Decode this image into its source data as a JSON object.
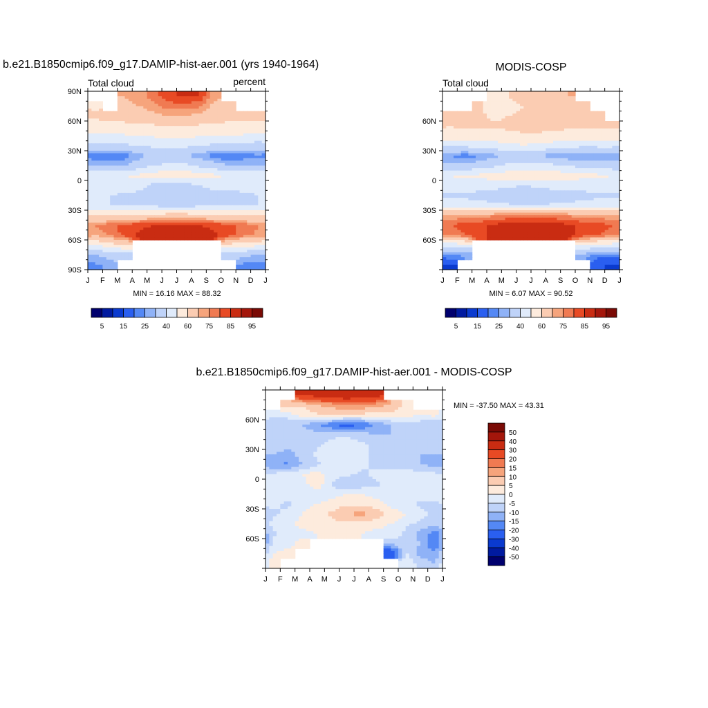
{
  "colors": {
    "abs_levels": [
      "#00006e",
      "#001aa0",
      "#0a3acf",
      "#2a5ff0",
      "#5488f5",
      "#8fb2f7",
      "#bfd3f9",
      "#e0ebfb",
      "#fdebdd",
      "#fbccb2",
      "#f6a47c",
      "#f07a52",
      "#e84a24",
      "#c92c12",
      "#a4160b",
      "#7a0a05"
    ],
    "diff_levels": [
      "#00006e",
      "#001aa0",
      "#0a3acf",
      "#2a5ff0",
      "#5488f5",
      "#8fb2f7",
      "#bfd3f9",
      "#e0ebfb",
      "#fdebdd",
      "#fbccb2",
      "#f6a47c",
      "#f07a52",
      "#e84a24",
      "#c92c12",
      "#a4160b",
      "#7a0a05"
    ]
  },
  "chart_data": [
    {
      "id": "model",
      "type": "heatmap",
      "title": "b.e21.B1850cmip6.f09_g17.DAMIP-hist-aer.001 (yrs 1940-1964)",
      "left_label": "Total cloud",
      "right_label": "percent",
      "stats": "MIN =  16.16 MAX =  88.32",
      "x_tick_labels": [
        "J",
        "F",
        "M",
        "A",
        "M",
        "J",
        "J",
        "A",
        "S",
        "O",
        "N",
        "D",
        "J"
      ],
      "y_tick_labels": [
        "90N",
        "60N",
        "30N",
        "0",
        "30S",
        "60S",
        "90S"
      ],
      "ylim": [
        -90,
        90
      ],
      "colorbar": {
        "orientation": "horizontal",
        "labels": [
          "5",
          "15",
          "25",
          "40",
          "60",
          "75",
          "85",
          "95"
        ]
      },
      "rows_lat": [
        85,
        75,
        65,
        55,
        45,
        35,
        25,
        15,
        5,
        -5,
        -15,
        -25,
        -35,
        -45,
        -55,
        -65,
        -75,
        -85
      ],
      "values": [
        [
          null,
          null,
          70,
          72,
          78,
          84,
          86,
          85,
          72,
          null,
          null,
          null
        ],
        [
          58,
          null,
          68,
          70,
          74,
          77,
          78,
          76,
          68,
          66,
          null,
          null
        ],
        [
          62,
          64,
          65,
          66,
          68,
          70,
          70,
          68,
          66,
          64,
          64,
          63
        ],
        [
          56,
          57,
          57,
          58,
          59,
          60,
          60,
          59,
          58,
          57,
          57,
          56
        ],
        [
          48,
          48,
          49,
          50,
          51,
          52,
          52,
          51,
          50,
          49,
          49,
          48
        ],
        [
          36,
          36,
          38,
          40,
          42,
          43,
          42,
          40,
          38,
          36,
          35,
          35
        ],
        [
          22,
          20,
          22,
          28,
          32,
          32,
          30,
          26,
          22,
          20,
          22,
          24
        ],
        [
          28,
          28,
          30,
          35,
          40,
          42,
          42,
          38,
          34,
          30,
          30,
          30
        ],
        [
          48,
          50,
          50,
          52,
          55,
          58,
          58,
          55,
          52,
          50,
          50,
          48
        ],
        [
          45,
          46,
          48,
          44,
          36,
          32,
          35,
          40,
          44,
          44,
          44,
          45
        ],
        [
          40,
          40,
          38,
          36,
          34,
          33,
          33,
          34,
          35,
          36,
          38,
          40
        ],
        [
          40,
          40,
          40,
          38,
          37,
          36,
          36,
          37,
          38,
          38,
          40,
          40
        ],
        [
          58,
          58,
          58,
          60,
          62,
          64,
          64,
          62,
          60,
          58,
          58,
          58
        ],
        [
          75,
          78,
          82,
          84,
          85,
          86,
          86,
          85,
          84,
          82,
          78,
          75
        ],
        [
          72,
          76,
          82,
          86,
          88,
          88,
          88,
          87,
          86,
          83,
          78,
          74
        ],
        [
          50,
          56,
          60,
          null,
          null,
          null,
          null,
          null,
          null,
          58,
          55,
          52
        ],
        [
          30,
          34,
          36,
          null,
          null,
          null,
          null,
          null,
          null,
          36,
          32,
          30
        ],
        [
          24,
          26,
          null,
          null,
          null,
          null,
          null,
          null,
          null,
          null,
          24,
          22
        ]
      ]
    },
    {
      "id": "obs",
      "type": "heatmap",
      "title": "MODIS-COSP",
      "left_label": "Total cloud",
      "stats": "MIN =   6.07 MAX =  90.52",
      "x_tick_labels": [
        "J",
        "F",
        "M",
        "A",
        "M",
        "J",
        "J",
        "A",
        "S",
        "O",
        "N",
        "D",
        "J"
      ],
      "y_tick_labels": [
        "60N",
        "30N",
        "0",
        "30S",
        "60S"
      ],
      "ylim": [
        -90,
        90
      ],
      "colorbar": {
        "orientation": "horizontal",
        "labels": [
          "5",
          "15",
          "25",
          "40",
          "60",
          "75",
          "85",
          "95"
        ]
      },
      "rows_lat": [
        85,
        75,
        65,
        55,
        45,
        35,
        25,
        15,
        5,
        -5,
        -15,
        -25,
        -35,
        -45,
        -55,
        -65,
        -75,
        -85
      ],
      "values": [
        [
          null,
          null,
          null,
          58,
          60,
          64,
          66,
          68,
          70,
          null,
          null,
          null
        ],
        [
          null,
          null,
          62,
          52,
          56,
          60,
          62,
          64,
          62,
          60,
          null,
          null
        ],
        [
          64,
          66,
          62,
          58,
          60,
          62,
          64,
          62,
          60,
          62,
          64,
          null
        ],
        [
          60,
          62,
          62,
          61,
          62,
          64,
          64,
          63,
          62,
          61,
          62,
          62
        ],
        [
          55,
          55,
          55,
          56,
          57,
          58,
          58,
          57,
          56,
          55,
          55,
          55
        ],
        [
          42,
          42,
          44,
          46,
          48,
          49,
          48,
          46,
          44,
          42,
          42,
          42
        ],
        [
          25,
          22,
          24,
          28,
          32,
          32,
          30,
          26,
          24,
          24,
          26,
          26
        ],
        [
          32,
          32,
          34,
          38,
          42,
          44,
          44,
          42,
          40,
          36,
          36,
          34
        ],
        [
          50,
          52,
          52,
          54,
          56,
          58,
          58,
          56,
          54,
          52,
          52,
          50
        ],
        [
          45,
          46,
          46,
          44,
          42,
          40,
          42,
          44,
          46,
          46,
          46,
          46
        ],
        [
          38,
          38,
          36,
          34,
          33,
          33,
          33,
          34,
          35,
          36,
          38,
          38
        ],
        [
          44,
          44,
          44,
          42,
          41,
          40,
          40,
          41,
          42,
          44,
          44,
          44
        ],
        [
          70,
          72,
          72,
          74,
          76,
          76,
          76,
          76,
          74,
          72,
          72,
          70
        ],
        [
          80,
          82,
          84,
          86,
          88,
          90,
          90,
          88,
          86,
          84,
          82,
          80
        ],
        [
          76,
          80,
          84,
          86,
          88,
          88,
          88,
          88,
          86,
          84,
          80,
          78
        ],
        [
          44,
          48,
          null,
          null,
          null,
          null,
          null,
          null,
          null,
          50,
          48,
          46
        ],
        [
          24,
          26,
          null,
          null,
          null,
          null,
          null,
          null,
          null,
          28,
          22,
          22
        ],
        [
          14,
          null,
          null,
          null,
          null,
          null,
          null,
          null,
          null,
          null,
          16,
          14
        ]
      ]
    },
    {
      "id": "diff",
      "type": "heatmap",
      "title": "b.e21.B1850cmip6.f09_g17.DAMIP-hist-aer.001 - MODIS-COSP",
      "stats": "MIN = -37.50 MAX =  43.31",
      "x_tick_labels": [
        "J",
        "F",
        "M",
        "A",
        "M",
        "J",
        "J",
        "A",
        "S",
        "O",
        "N",
        "D",
        "J"
      ],
      "y_tick_labels": [
        "60N",
        "30N",
        "0",
        "30S",
        "60S"
      ],
      "ylim": [
        -90,
        90
      ],
      "colorbar": {
        "orientation": "vertical",
        "labels": [
          "50",
          "40",
          "30",
          "20",
          "15",
          "10",
          "5",
          "0",
          "-5",
          "-10",
          "-15",
          "-20",
          "-30",
          "-40",
          "-50"
        ]
      },
      "rows_lat": [
        85,
        75,
        65,
        55,
        45,
        35,
        25,
        15,
        5,
        -5,
        -15,
        -25,
        -35,
        -45,
        -55,
        -65,
        -75,
        -85
      ],
      "values": [
        [
          null,
          null,
          30,
          34,
          38,
          40,
          38,
          34,
          null,
          null,
          null,
          null
        ],
        [
          null,
          8,
          6,
          10,
          12,
          14,
          14,
          12,
          10,
          4,
          null,
          null
        ],
        [
          -4,
          -2,
          2,
          4,
          6,
          6,
          4,
          2,
          4,
          2,
          0,
          2
        ],
        [
          -8,
          -10,
          -10,
          -14,
          -20,
          -24,
          -20,
          -14,
          -10,
          -8,
          -8,
          -10
        ],
        [
          -10,
          -10,
          -8,
          -8,
          -6,
          -6,
          -8,
          -10,
          -10,
          -8,
          -8,
          -10
        ],
        [
          -6,
          -8,
          -8,
          -6,
          -4,
          -2,
          -4,
          -6,
          -8,
          -6,
          -8,
          -8
        ],
        [
          -10,
          -12,
          -8,
          -4,
          -2,
          -2,
          -4,
          -6,
          -6,
          -8,
          -10,
          -10
        ],
        [
          -14,
          -16,
          -10,
          -6,
          -4,
          -2,
          -4,
          -6,
          -8,
          -8,
          -10,
          -12
        ],
        [
          -4,
          -2,
          0,
          2,
          -2,
          -4,
          -6,
          -4,
          -2,
          -2,
          -4,
          -4
        ],
        [
          0,
          -4,
          -2,
          4,
          -6,
          -10,
          -8,
          -6,
          -4,
          -2,
          -4,
          -2
        ],
        [
          -2,
          -4,
          -2,
          -4,
          -2,
          0,
          0,
          -2,
          -4,
          -2,
          -2,
          -2
        ],
        [
          -4,
          -6,
          -2,
          0,
          2,
          4,
          4,
          2,
          -2,
          -4,
          -6,
          -6
        ],
        [
          -6,
          -4,
          0,
          2,
          6,
          10,
          12,
          8,
          4,
          0,
          -4,
          -6
        ],
        [
          -4,
          -2,
          2,
          4,
          4,
          4,
          4,
          2,
          0,
          -4,
          -6,
          -8
        ],
        [
          -6,
          -4,
          -2,
          0,
          0,
          0,
          0,
          -2,
          -2,
          -6,
          -12,
          -18
        ],
        [
          -4,
          -2,
          2,
          null,
          null,
          null,
          null,
          null,
          -8,
          -6,
          -10,
          -20
        ],
        [
          0,
          2,
          null,
          null,
          null,
          null,
          null,
          null,
          -30,
          -4,
          -12,
          -14
        ],
        [
          4,
          null,
          null,
          null,
          null,
          null,
          null,
          null,
          null,
          -2,
          -6,
          -10
        ]
      ]
    }
  ]
}
